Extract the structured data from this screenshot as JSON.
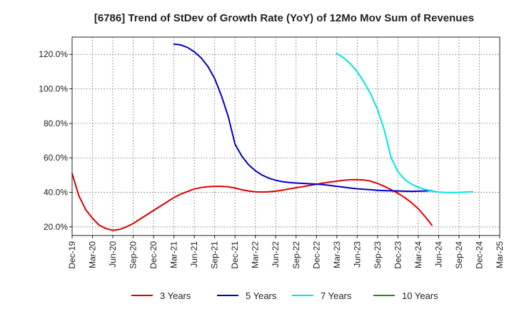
{
  "chart_data": {
    "type": "line",
    "title": "[6786]  Trend of StDev of Growth Rate (YoY) of 12Mo Mov Sum of Revenues",
    "xlabel": "",
    "ylabel": "",
    "ylim": [
      15,
      130
    ],
    "yticks": [
      20,
      40,
      60,
      80,
      100,
      120
    ],
    "ytick_labels": [
      "20.0%",
      "40.0%",
      "60.0%",
      "80.0%",
      "100.0%",
      "120.0%"
    ],
    "x_start": "Dec-19",
    "x_range_months": [
      0,
      63
    ],
    "xtick_labels": [
      "Dec-19",
      "Mar-20",
      "Jun-20",
      "Sep-20",
      "Dec-20",
      "Mar-21",
      "Jun-21",
      "Sep-21",
      "Dec-21",
      "Mar-22",
      "Jun-22",
      "Sep-22",
      "Dec-22",
      "Mar-23",
      "Jun-23",
      "Sep-23",
      "Dec-23",
      "Mar-24",
      "Jun-24",
      "Sep-24",
      "Dec-24",
      "Mar-25"
    ],
    "grid": true,
    "legend_position": "bottom",
    "series": [
      {
        "name": "3 Years",
        "color": "#dd0000",
        "points": [
          [
            0,
            51
          ],
          [
            1,
            38
          ],
          [
            2,
            30
          ],
          [
            3,
            25
          ],
          [
            4,
            21
          ],
          [
            5,
            19
          ],
          [
            6,
            18
          ],
          [
            7,
            18.5
          ],
          [
            8,
            20
          ],
          [
            9,
            22
          ],
          [
            10,
            24.5
          ],
          [
            11,
            27
          ],
          [
            12,
            29.5
          ],
          [
            13,
            32
          ],
          [
            14,
            34.5
          ],
          [
            15,
            37
          ],
          [
            16,
            39
          ],
          [
            17,
            40.5
          ],
          [
            18,
            42
          ],
          [
            19,
            42.8
          ],
          [
            20,
            43.3
          ],
          [
            21,
            43.5
          ],
          [
            22,
            43.5
          ],
          [
            23,
            43.2
          ],
          [
            24,
            42.5
          ],
          [
            25,
            41.5
          ],
          [
            26,
            40.8
          ],
          [
            27,
            40.3
          ],
          [
            28,
            40.2
          ],
          [
            29,
            40.3
          ],
          [
            30,
            40.7
          ],
          [
            31,
            41.3
          ],
          [
            32,
            42
          ],
          [
            33,
            42.7
          ],
          [
            34,
            43.3
          ],
          [
            35,
            44
          ],
          [
            36,
            44.7
          ],
          [
            37,
            45.4
          ],
          [
            38,
            46
          ],
          [
            39,
            46.5
          ],
          [
            40,
            47
          ],
          [
            41,
            47.3
          ],
          [
            42,
            47.4
          ],
          [
            43,
            47.2
          ],
          [
            44,
            46.5
          ],
          [
            45,
            45.2
          ],
          [
            46,
            43.5
          ],
          [
            47,
            41.5
          ],
          [
            48,
            39.5
          ],
          [
            49,
            37
          ],
          [
            50,
            34
          ],
          [
            51,
            30.5
          ],
          [
            52,
            26
          ],
          [
            53,
            21
          ]
        ]
      },
      {
        "name": "5 Years",
        "color": "#0000cc",
        "points": [
          [
            15,
            126
          ],
          [
            16,
            125.5
          ],
          [
            17,
            124
          ],
          [
            18,
            121.5
          ],
          [
            19,
            118
          ],
          [
            20,
            113
          ],
          [
            21,
            106
          ],
          [
            22,
            96
          ],
          [
            23,
            84
          ],
          [
            24,
            68
          ],
          [
            25,
            61
          ],
          [
            26,
            56
          ],
          [
            27,
            52.5
          ],
          [
            28,
            50
          ],
          [
            29,
            48.2
          ],
          [
            30,
            47
          ],
          [
            31,
            46.2
          ],
          [
            32,
            45.7
          ],
          [
            33,
            45.4
          ],
          [
            34,
            45.2
          ],
          [
            35,
            45
          ],
          [
            36,
            44.8
          ],
          [
            37,
            44.5
          ],
          [
            38,
            44
          ],
          [
            39,
            43.5
          ],
          [
            40,
            43
          ],
          [
            41,
            42.5
          ],
          [
            42,
            42.1
          ],
          [
            43,
            41.8
          ],
          [
            44,
            41.5
          ],
          [
            45,
            41.2
          ],
          [
            46,
            41
          ],
          [
            47,
            40.9
          ],
          [
            48,
            40.8
          ],
          [
            49,
            40.7
          ],
          [
            50,
            40.6
          ],
          [
            51,
            40.7
          ],
          [
            52,
            40.8
          ],
          [
            53,
            41
          ]
        ]
      },
      {
        "name": "7 Years",
        "color": "#00e5e5",
        "points": [
          [
            39,
            120.5
          ],
          [
            40,
            118
          ],
          [
            41,
            114.5
          ],
          [
            42,
            110
          ],
          [
            43,
            104
          ],
          [
            44,
            97
          ],
          [
            45,
            88
          ],
          [
            46,
            76
          ],
          [
            47,
            60
          ],
          [
            48,
            52
          ],
          [
            49,
            47.5
          ],
          [
            50,
            44.8
          ],
          [
            51,
            43
          ],
          [
            52,
            41.7
          ],
          [
            53,
            40.8
          ],
          [
            54,
            40.2
          ],
          [
            55,
            40
          ],
          [
            56,
            39.9
          ],
          [
            57,
            40
          ],
          [
            58,
            40.2
          ],
          [
            59,
            40.4
          ]
        ]
      },
      {
        "name": "10 Years",
        "color": "#228822",
        "points": []
      }
    ]
  }
}
